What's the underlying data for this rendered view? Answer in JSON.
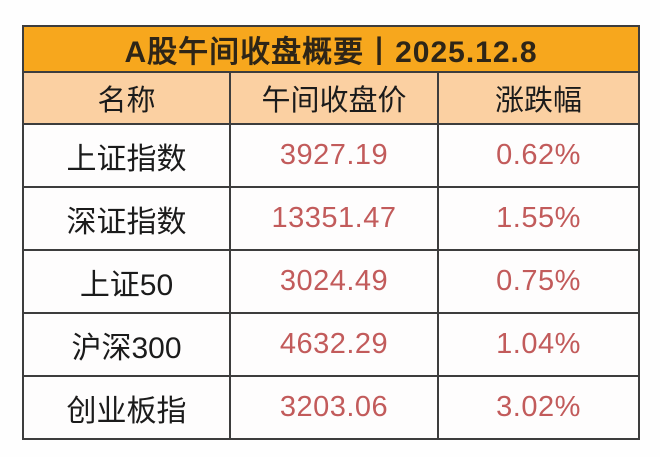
{
  "page": {
    "background_color": "#ffffff"
  },
  "table": {
    "title": "A股午间收盘概要丨2025.12.8",
    "columns": [
      "名称",
      "午间收盘价",
      "涨跌幅"
    ],
    "rows": [
      {
        "name": "上证指数",
        "close": "3927.19",
        "change": "0.62%"
      },
      {
        "name": "深证指数",
        "close": "13351.47",
        "change": "1.55%"
      },
      {
        "name": "上证50",
        "close": "3024.49",
        "change": "0.75%"
      },
      {
        "name": "沪深300",
        "close": "4632.29",
        "change": "1.04%"
      },
      {
        "name": "创业板指",
        "close": "3203.06",
        "change": "3.02%"
      }
    ],
    "colors": {
      "title_background": "#f7a71d",
      "header_background": "#fbd0a2",
      "row_background": "#fefdfd",
      "title_text": "#2e2517",
      "name_text": "#1b1b1b",
      "value_text": "#c25b5b",
      "border": "#3d3d3d"
    }
  },
  "chart_data": {
    "type": "table",
    "title": "A股午间收盘概要丨2025.12.8",
    "columns": [
      "名称",
      "午间收盘价",
      "涨跌幅"
    ],
    "rows": [
      [
        "上证指数",
        3927.19,
        "0.62%"
      ],
      [
        "深证指数",
        13351.47,
        "1.55%"
      ],
      [
        "上证50",
        3024.49,
        "0.75%"
      ],
      [
        "沪深300",
        4632.29,
        "1.04%"
      ],
      [
        "创业板指",
        3203.06,
        "3.02%"
      ]
    ]
  }
}
